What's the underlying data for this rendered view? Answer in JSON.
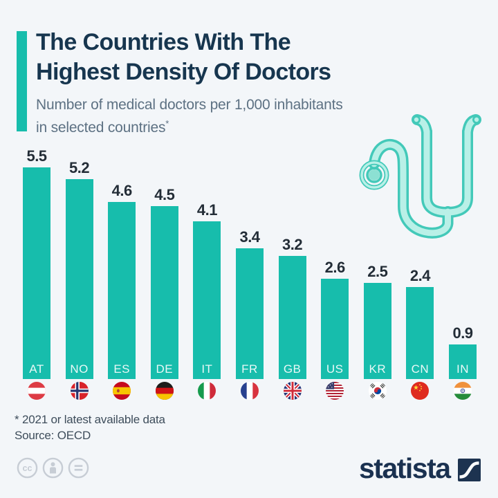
{
  "header": {
    "title_line1": "The Countries With The",
    "title_line2": "Highest Density Of Doctors",
    "subtitle_line1": "Number of medical doctors per 1,000 inhabitants",
    "subtitle_line2": "in selected countries",
    "subtitle_marker": "*"
  },
  "chart_data": {
    "type": "bar",
    "title": "The Countries With The Highest Density Of Doctors",
    "subtitle": "Number of medical doctors per 1,000 inhabitants in selected countries*",
    "categories": [
      "AT",
      "NO",
      "ES",
      "DE",
      "IT",
      "FR",
      "GB",
      "US",
      "KR",
      "CN",
      "IN"
    ],
    "values": [
      5.5,
      5.2,
      4.6,
      4.5,
      4.1,
      3.4,
      3.2,
      2.6,
      2.5,
      2.4,
      0.9
    ],
    "flags": [
      "flag-austria",
      "flag-norway",
      "flag-spain",
      "flag-germany",
      "flag-italy",
      "flag-france",
      "flag-united-kingdom",
      "flag-united-states",
      "flag-south-korea",
      "flag-china",
      "flag-india"
    ],
    "xlabel": "",
    "ylabel": "",
    "ylim": [
      0,
      5.8
    ],
    "grid": false,
    "legend": false,
    "bar_color": "#17bdac",
    "value_labels_shown": true
  },
  "illustration": {
    "icon": "stethoscope-icon"
  },
  "footnotes": {
    "note": "* 2021 or latest available data",
    "source": "Source: OECD"
  },
  "footer": {
    "license_icons": [
      "cc-icon",
      "attribution-person-icon",
      "equals-icon"
    ],
    "brand_wordmark": "statista",
    "brand_icon": "statista-logo-icon"
  },
  "colors": {
    "background": "#f3f6f9",
    "accent_teal": "#17bdac",
    "title_navy": "#17364f",
    "subtitle_slate": "#5d7183",
    "value_label": "#232d37",
    "footnote_text": "#3e4d5b",
    "license_gray": "#c7cdd5",
    "brand_navy": "#1a3150"
  }
}
